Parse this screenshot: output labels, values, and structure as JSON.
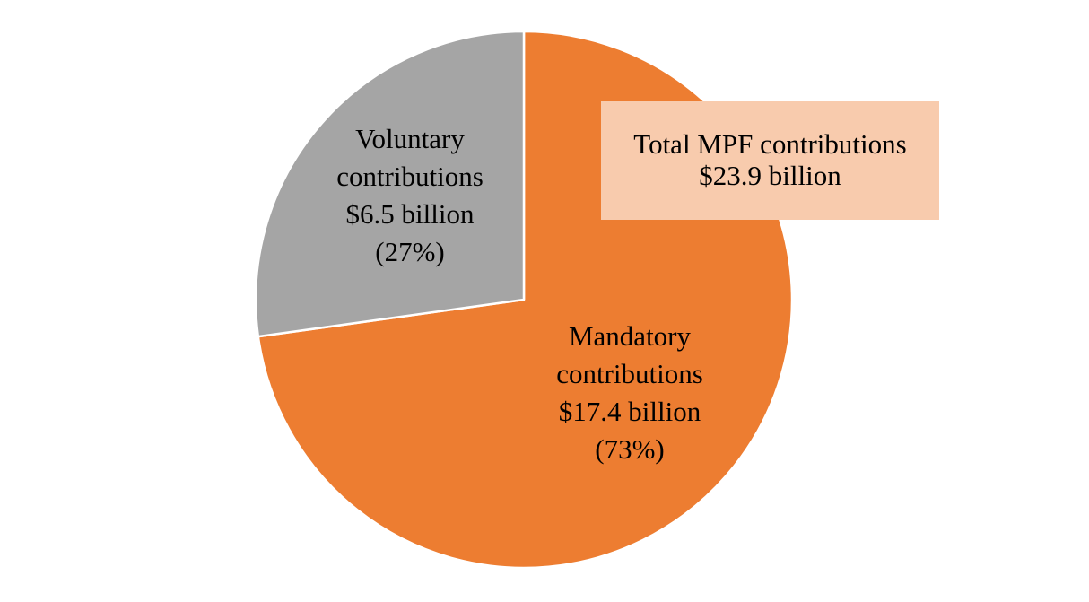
{
  "chart_data": {
    "type": "pie",
    "slices": [
      {
        "name": "Mandatory contributions",
        "value": 17.4,
        "percent": 73,
        "label_lines": [
          "Mandatory",
          "contributions",
          "$17.4 billion",
          "(73%)"
        ],
        "color": "#ED7D31"
      },
      {
        "name": "Voluntary contributions",
        "value": 6.5,
        "percent": 27,
        "label_lines": [
          "Voluntary",
          "contributions",
          "$6.5 billion",
          "(27%)"
        ],
        "color": "#A5A5A5"
      }
    ],
    "start_angle": "12 o'clock",
    "direction": "clockwise",
    "slice_border_color": "#FFFFFF"
  },
  "annotation": {
    "line1": "Total MPF contributions",
    "line2": "$23.9 billion",
    "background": "#F8CBAD"
  }
}
